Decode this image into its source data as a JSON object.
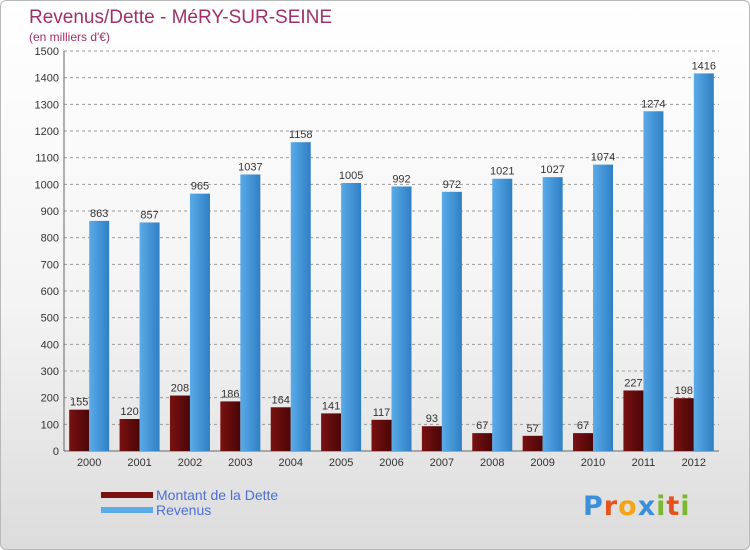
{
  "header": {
    "title": "Revenus/Dette - MéRY-SUR-SEINE",
    "subtitle": "(en milliers d'€)"
  },
  "legend": {
    "debt_label": "Montant de la Dette",
    "revenue_label": "Revenus"
  },
  "logo": {
    "text": "Proxiti",
    "letters": [
      {
        "ch": "P",
        "color": "#3a8fd8"
      },
      {
        "ch": "r",
        "color": "#e8501c"
      },
      {
        "ch": "o",
        "color": "#f2a516"
      },
      {
        "ch": "x",
        "color": "#3a8fd8"
      },
      {
        "ch": "i",
        "color": "#7cb82f"
      },
      {
        "ch": "t",
        "color": "#e8501c"
      },
      {
        "ch": "i",
        "color": "#7cb82f"
      }
    ]
  },
  "colors": {
    "debt": "#7a1111",
    "debt_dark": "#4a0606",
    "revenue": "#5aabe8",
    "revenue_dark": "#2f7fc4",
    "title": "#a0306a",
    "legend_text": "#4a6fd6"
  },
  "chart_data": {
    "type": "bar",
    "title": "Revenus/Dette - MéRY-SUR-SEINE",
    "subtitle": "(en milliers d'€)",
    "categories": [
      "2000",
      "2001",
      "2002",
      "2003",
      "2004",
      "2005",
      "2006",
      "2007",
      "2008",
      "2009",
      "2010",
      "2011",
      "2012"
    ],
    "series": [
      {
        "name": "Montant de la Dette",
        "values": [
          155,
          120,
          208,
          186,
          164,
          141,
          117,
          93,
          67,
          57,
          67,
          227,
          198
        ]
      },
      {
        "name": "Revenus",
        "values": [
          863,
          857,
          965,
          1037,
          1158,
          1005,
          992,
          972,
          1021,
          1027,
          1074,
          1274,
          1416
        ]
      }
    ],
    "ylim": [
      0,
      1500
    ],
    "yticks": [
      0,
      100,
      200,
      300,
      400,
      500,
      600,
      700,
      800,
      900,
      1000,
      1100,
      1200,
      1300,
      1400,
      1500
    ],
    "grid": true,
    "legend_position": "bottom-left"
  }
}
